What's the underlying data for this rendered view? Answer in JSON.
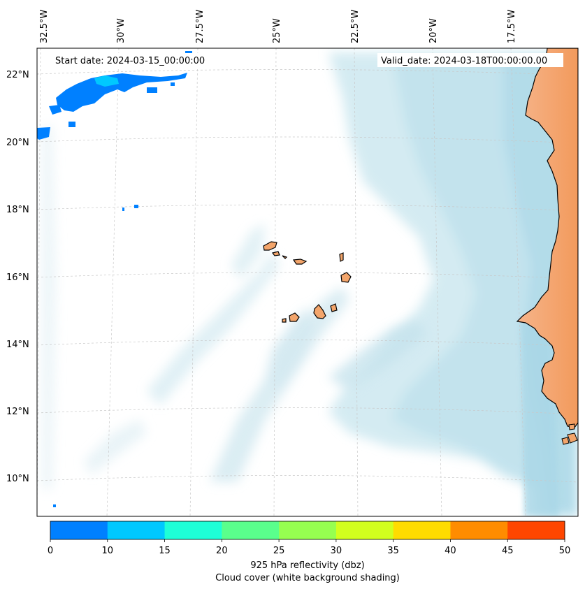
{
  "map": {
    "start_date": "Start date: 2024-03-15_00:00:00",
    "valid_date": "Valid_date: 2024-03-18T00:00:00.00",
    "lon_labels": [
      "32.5°W",
      "30°W",
      "27.5°W",
      "25°W",
      "22.5°W",
      "20°W",
      "17.5°W"
    ],
    "lat_labels": [
      "22°N",
      "20°N",
      "18°N",
      "16°N",
      "14°N",
      "12°N",
      "10°N"
    ],
    "colors": {
      "land": "#f3a56b",
      "ocean_cloud": "#add8e6",
      "coastline": "#000000",
      "gridline": "#b0b0b0"
    }
  },
  "colorbar": {
    "label_line1": "925 hPa reflectivity (dbz)",
    "label_line2": "Cloud cover (white background shading)",
    "ticks": [
      "0",
      "10",
      "15",
      "20",
      "25",
      "30",
      "35",
      "40",
      "45",
      "50"
    ],
    "colors": [
      "#0080ff",
      "#00c8ff",
      "#1effd7",
      "#5aff8c",
      "#96ff50",
      "#d2ff1e",
      "#ffdc00",
      "#ff8c00",
      "#ff4600"
    ]
  }
}
